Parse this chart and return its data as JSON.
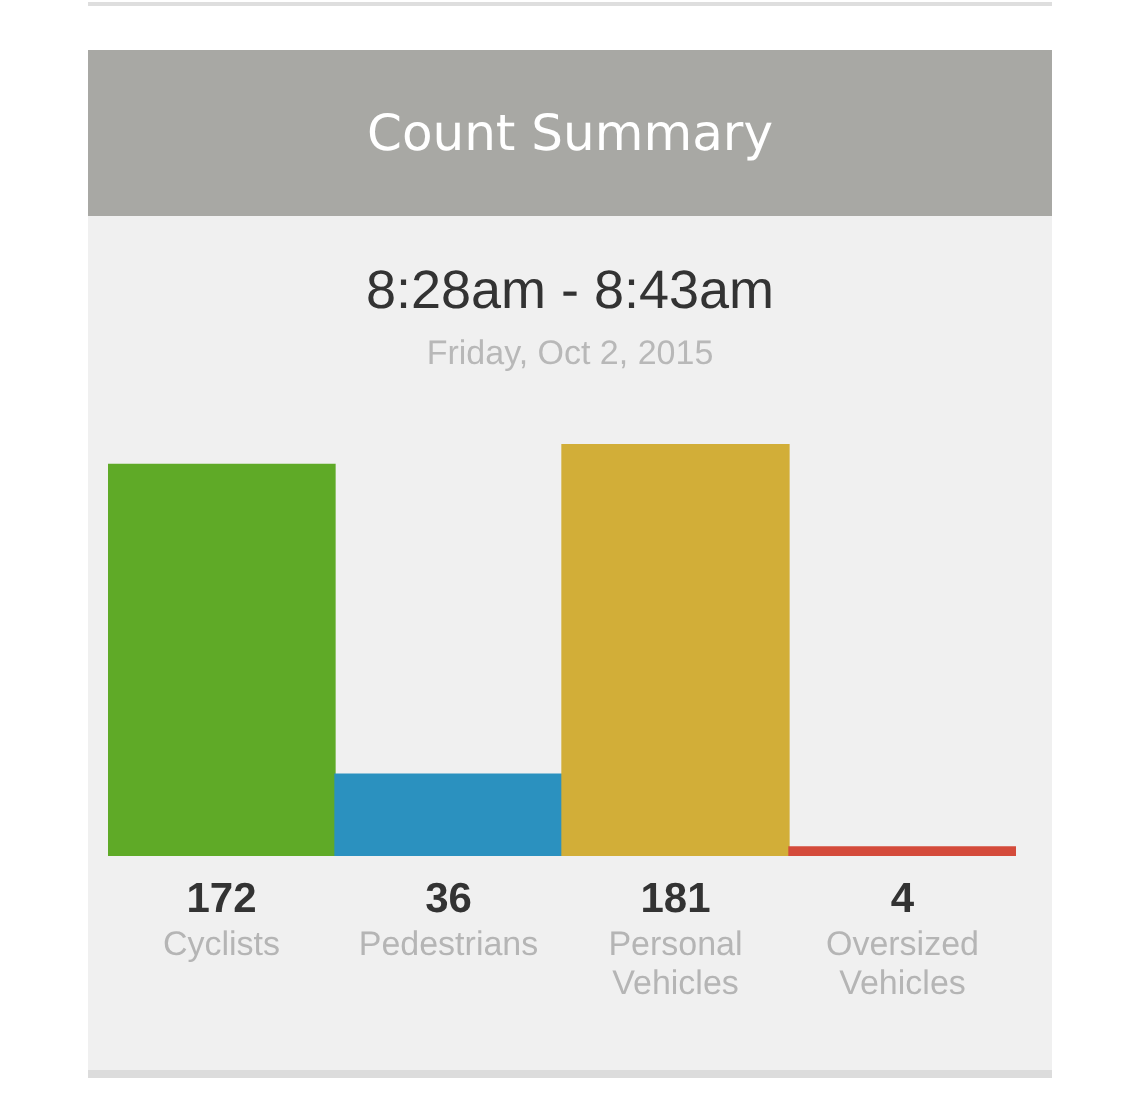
{
  "chart_data": {
    "type": "bar",
    "title": "Count Summary",
    "subtitle": "8:28am - 8:43am",
    "annotations": [
      "Friday, Oct 2, 2015"
    ],
    "categories": [
      "Cyclists",
      "Pedestrians",
      "Personal Vehicles",
      "Oversized Vehicles"
    ],
    "values": [
      172,
      36,
      181,
      4
    ],
    "colors": [
      "#5faa27",
      "#2b91bf",
      "#d2ae38",
      "#d44b3b"
    ],
    "data_labels": true,
    "grid": false,
    "legend": false,
    "tick_labels": "x"
  }
}
